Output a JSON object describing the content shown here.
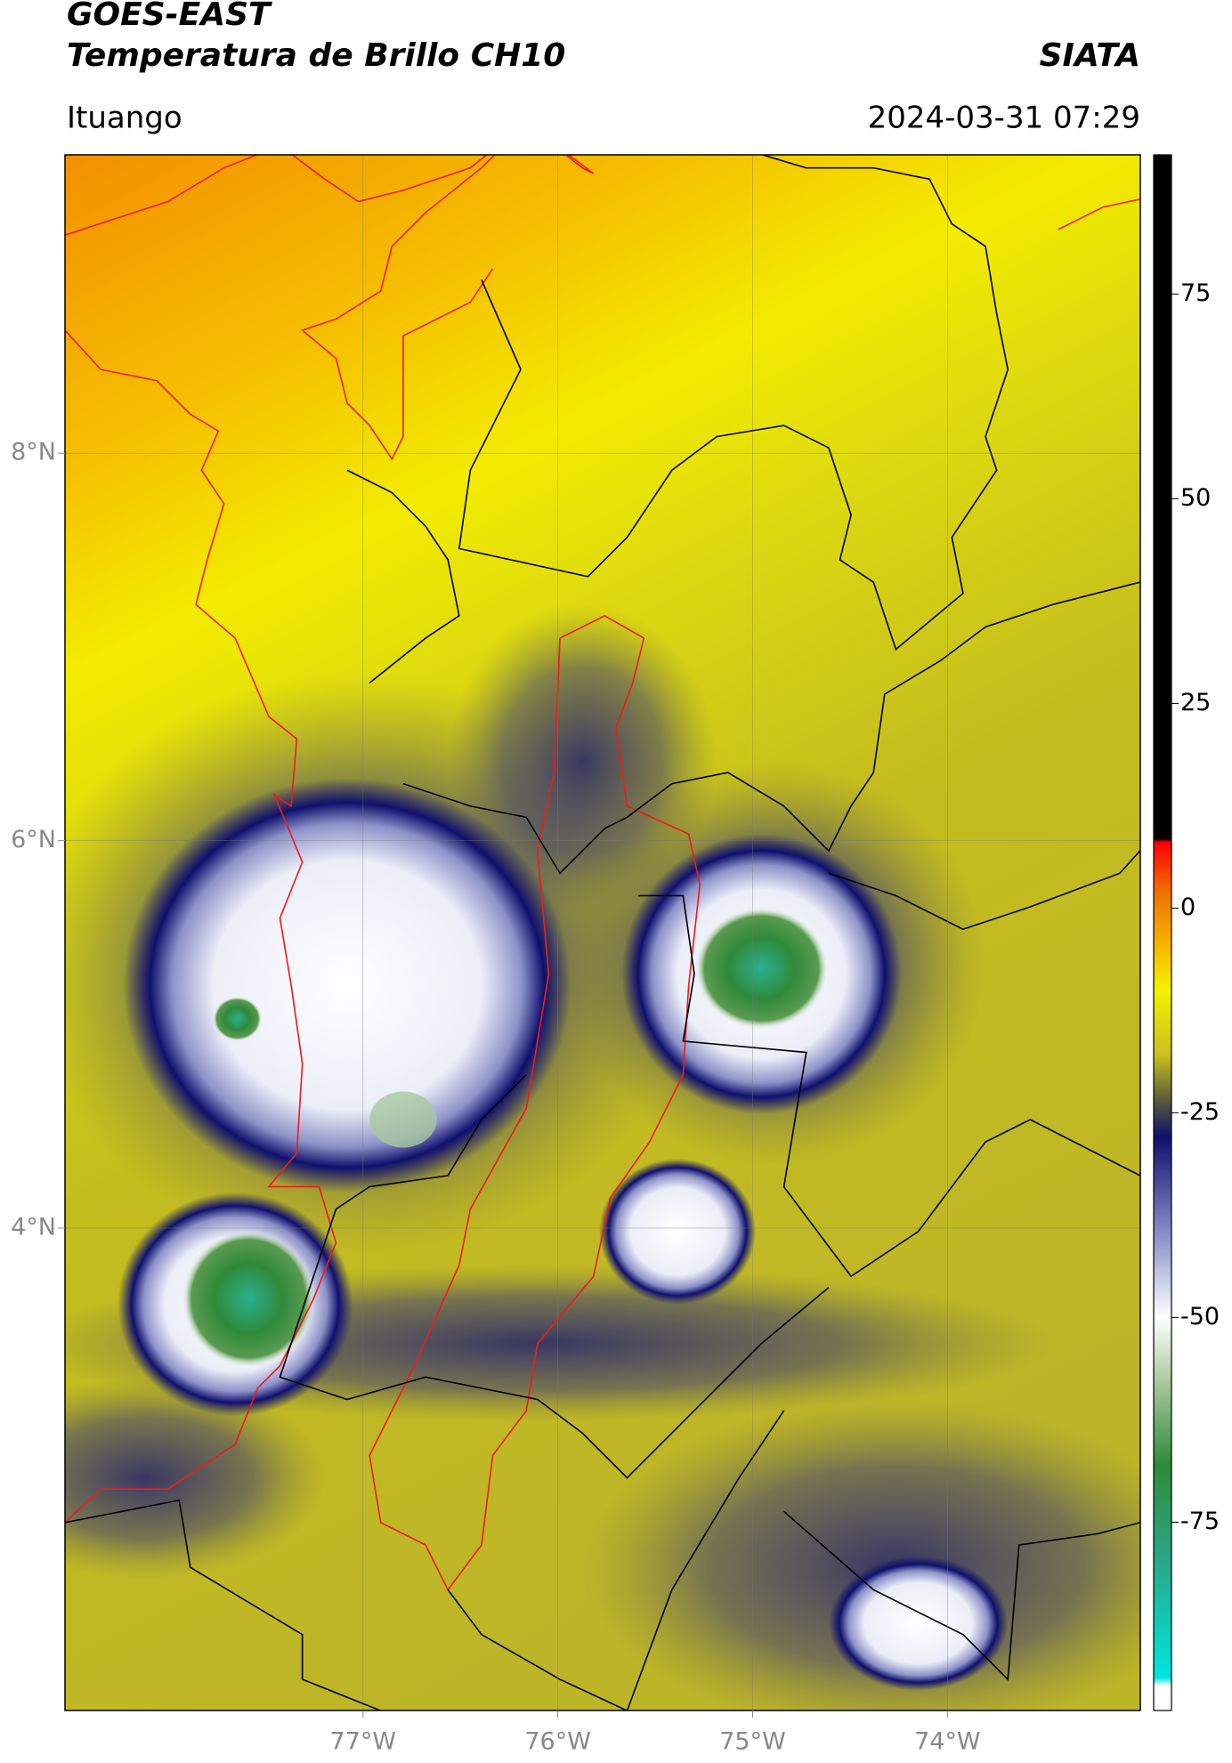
{
  "header": {
    "title": "GOES-EAST",
    "subtitle": "Temperatura de Brillo CH10",
    "source": "SIATA",
    "location": "Ituango",
    "datetime": "2024-03-31 07:29"
  },
  "map": {
    "xlim": [
      -78.53,
      -73.01
    ],
    "ylim": [
      1.51,
      9.54
    ],
    "xticks": [
      {
        "value": -77,
        "label": "77°W"
      },
      {
        "value": -76,
        "label": "76°W"
      },
      {
        "value": -75,
        "label": "75°W"
      },
      {
        "value": -74,
        "label": "74°W"
      }
    ],
    "yticks": [
      {
        "value": 4,
        "label": "4°N"
      },
      {
        "value": 6,
        "label": "6°N"
      },
      {
        "value": 8,
        "label": "8°N"
      }
    ],
    "grid": true
  },
  "colorbar": {
    "lim": [
      -98,
      92
    ],
    "ticks": [
      -75,
      -50,
      -25,
      0,
      25,
      50,
      75
    ],
    "stops": [
      {
        "value": -98,
        "color": "#ffffff"
      },
      {
        "value": -95,
        "color": "#ffffff"
      },
      {
        "value": -94,
        "color": "#00e5e0"
      },
      {
        "value": -80,
        "color": "#2aa88a"
      },
      {
        "value": -68,
        "color": "#2f8a3a"
      },
      {
        "value": -58,
        "color": "#a8c8a0"
      },
      {
        "value": -50,
        "color": "#ffffff"
      },
      {
        "value": -40,
        "color": "#8a90c8"
      },
      {
        "value": -28,
        "color": "#10106e"
      },
      {
        "value": -24,
        "color": "#505040"
      },
      {
        "value": -18,
        "color": "#c8c01e"
      },
      {
        "value": -10,
        "color": "#f5f000"
      },
      {
        "value": -4,
        "color": "#f5b000"
      },
      {
        "value": 2,
        "color": "#f07000"
      },
      {
        "value": 8,
        "color": "#ff0000"
      },
      {
        "value": 8.5,
        "color": "#000000"
      },
      {
        "value": 92,
        "color": "#000000"
      }
    ]
  }
}
